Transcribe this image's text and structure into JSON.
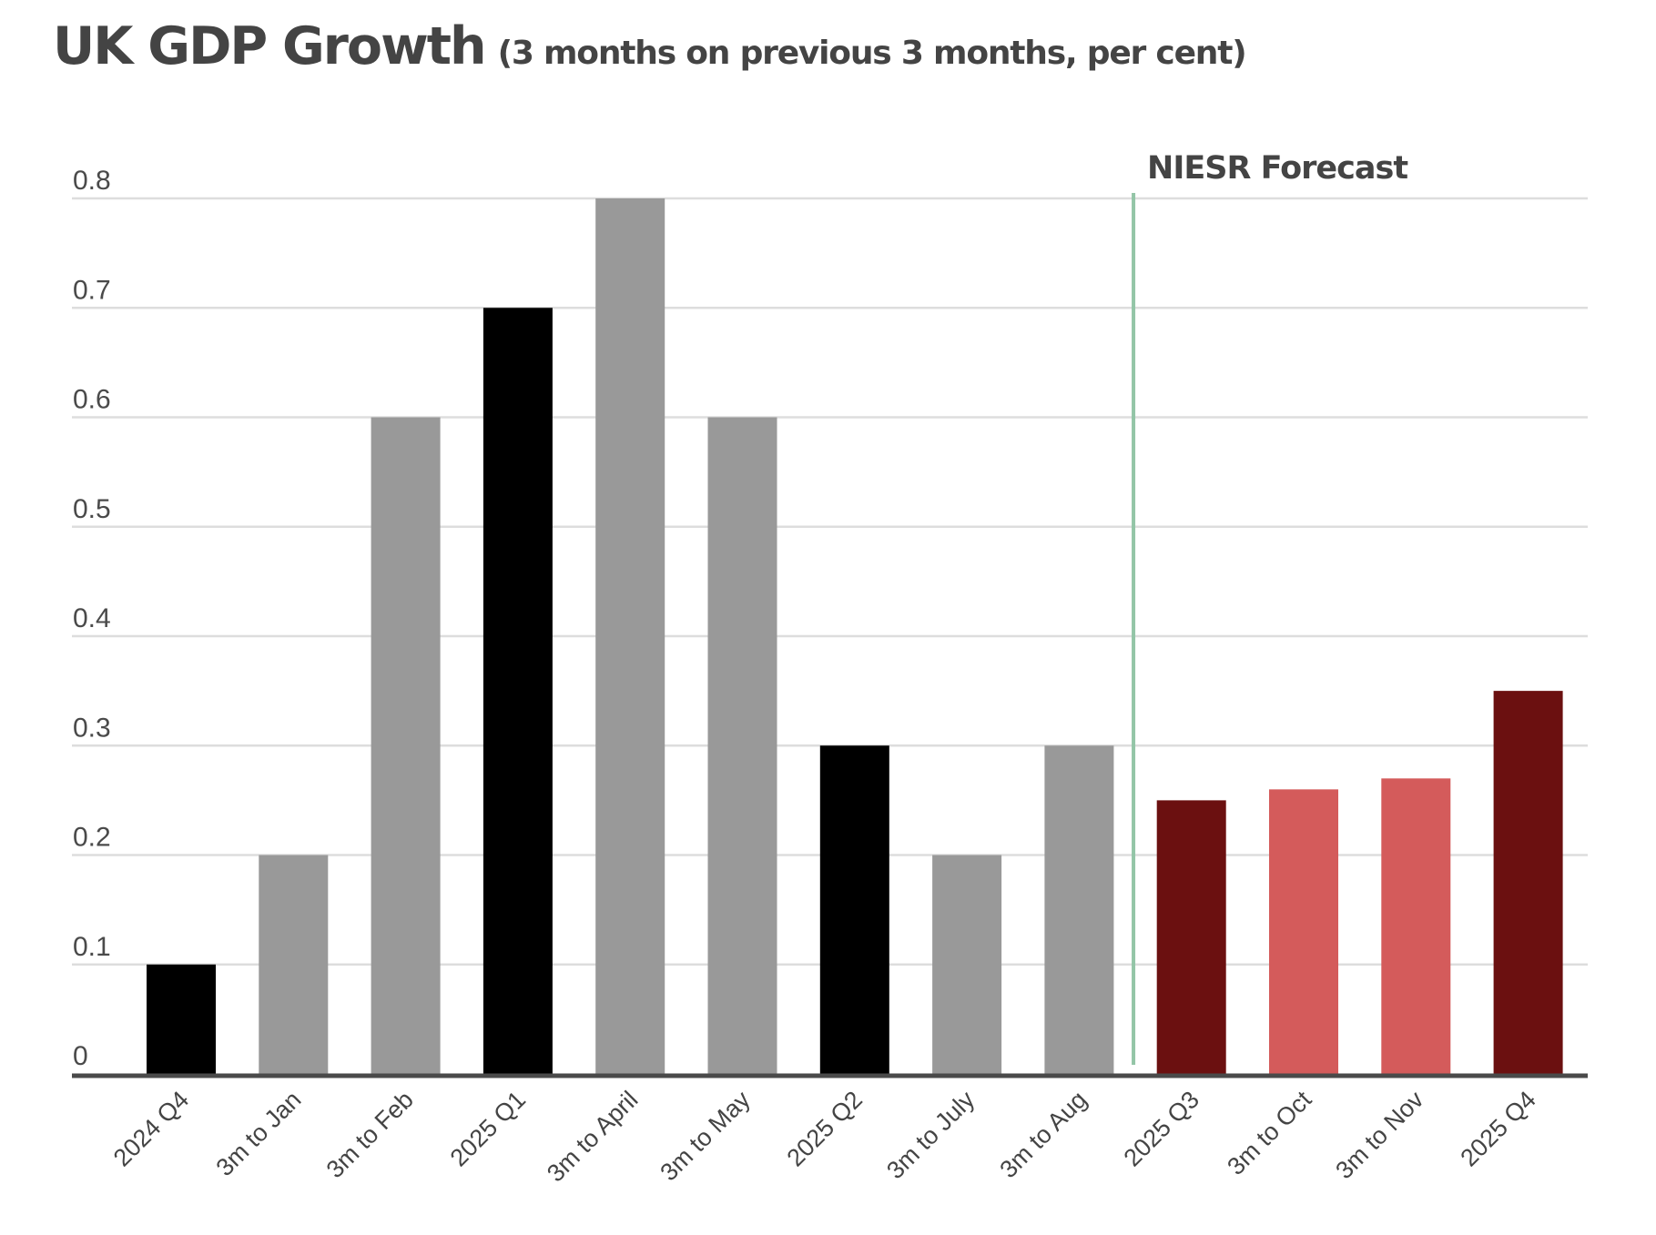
{
  "chart_data": {
    "type": "bar",
    "title": "UK GDP Growth",
    "subtitle": "(3 months on previous 3 months, per cent)",
    "xlabel": "",
    "ylabel": "",
    "ylim": [
      0,
      0.8
    ],
    "yticks": [
      0,
      0.1,
      0.2,
      0.3,
      0.4,
      0.5,
      0.6,
      0.7,
      0.8
    ],
    "ytick_labels": [
      "0",
      "0.1",
      "0.2",
      "0.3",
      "0.4",
      "0.5",
      "0.6",
      "0.7",
      "0.8"
    ],
    "grid": true,
    "legend": "none",
    "categories": [
      "2024 Q4",
      "3m to Jan",
      "3m to Feb",
      "2025 Q1",
      "3m to April",
      "3m to May",
      "2025 Q2",
      "3m to July",
      "3m to Aug",
      "2025 Q3",
      "3m to Oct",
      "3m to Nov",
      "2025 Q4"
    ],
    "values": [
      0.1,
      0.2,
      0.6,
      0.7,
      0.8,
      0.6,
      0.3,
      0.2,
      0.3,
      0.25,
      0.26,
      0.27,
      0.35
    ],
    "bar_kinds": [
      "quarter-actual",
      "monthly-actual",
      "monthly-actual",
      "quarter-actual",
      "monthly-actual",
      "monthly-actual",
      "quarter-actual",
      "monthly-actual",
      "monthly-actual",
      "quarter-forecast",
      "monthly-forecast",
      "monthly-forecast",
      "quarter-forecast"
    ],
    "colors": {
      "quarter-actual": "#000000",
      "monthly-actual": "#999999",
      "quarter-forecast": "#6b1010",
      "monthly-forecast": "#d45b5b",
      "forecast-line": "#93c5a7",
      "gridline": "#dddddd",
      "axis": "#4a4a4a",
      "text": "#444444"
    },
    "annotations": [
      {
        "text": "NIESR Forecast",
        "type": "vertical-line",
        "between": [
          "3m to Aug",
          "2025 Q3"
        ]
      }
    ]
  }
}
